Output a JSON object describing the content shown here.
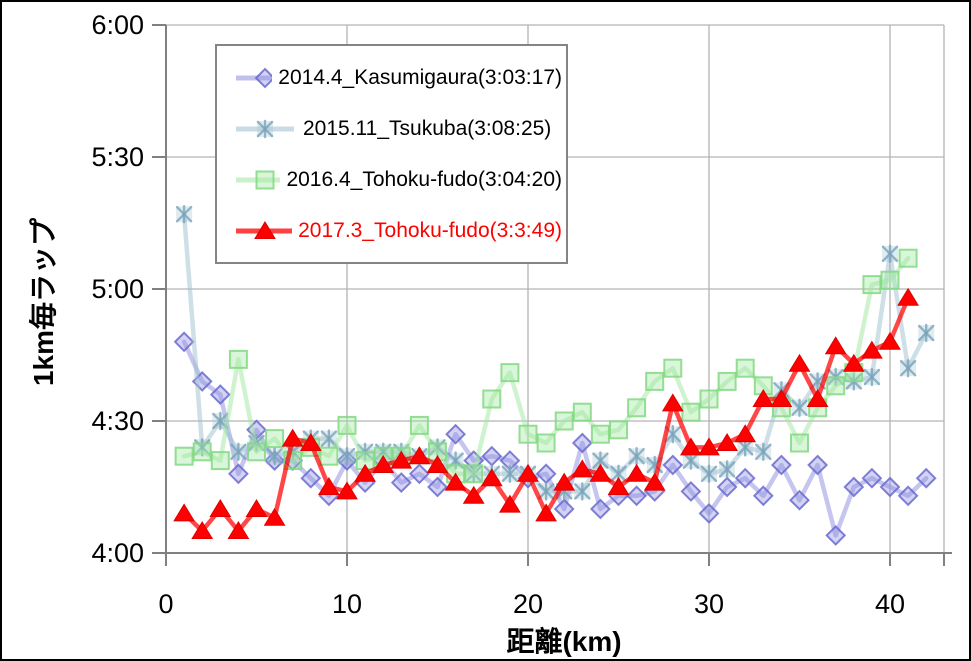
{
  "figure": {
    "background": "#ffffff",
    "border_color": "#000000",
    "grid_color": "#b3b3b3",
    "axis_color": "#808080",
    "legend_border_color": "#848484"
  },
  "chart_data": {
    "type": "line",
    "title": "",
    "xlabel": "距離(km)",
    "ylabel": "1km毎ラップ",
    "x_ticks": [
      0,
      10,
      20,
      30,
      40
    ],
    "y_ticks": [
      "4:00",
      "4:30",
      "5:00",
      "5:30",
      "6:00"
    ],
    "ylim": [
      "4:00",
      "6:00"
    ],
    "xlim": [
      0,
      43
    ],
    "grid": true,
    "legend_position": "inset-top-left",
    "series": [
      {
        "name": "2014.4_Kasumigaura(3:03:17)",
        "marker": "diamond",
        "color": "#8c8ce0",
        "marker_stroke": "#6a6ad0",
        "label_color": "#000000",
        "x": [
          1,
          2,
          3,
          4,
          5,
          6,
          7,
          8,
          9,
          10,
          11,
          12,
          13,
          14,
          15,
          16,
          17,
          18,
          19,
          20,
          21,
          22,
          23,
          24,
          25,
          26,
          27,
          28,
          29,
          30,
          31,
          32,
          33,
          34,
          35,
          36,
          37,
          38,
          39,
          40,
          41,
          42
        ],
        "laps": [
          "4:48",
          "4:39",
          "4:36",
          "4:18",
          "4:28",
          "4:21",
          "4:21",
          "4:17",
          "4:13",
          "4:21",
          "4:16",
          "4:21",
          "4:16",
          "4:18",
          "4:15",
          "4:27",
          "4:21",
          "4:22",
          "4:21",
          "4:17",
          "4:18",
          "4:10",
          "4:25",
          "4:10",
          "4:13",
          "4:13",
          "4:14",
          "4:20",
          "4:14",
          "4:09",
          "4:15",
          "4:17",
          "4:13",
          "4:20",
          "4:12",
          "4:20",
          "4:04",
          "4:15",
          "4:17",
          "4:15",
          "4:13",
          "4:17"
        ]
      },
      {
        "name": "2015.11_Tsukuba(3:08:25)",
        "marker": "asterisk",
        "color": "#9dc0d2",
        "marker_stroke": "#7ba4ba",
        "label_color": "#000000",
        "x": [
          1,
          2,
          3,
          4,
          5,
          6,
          7,
          8,
          9,
          10,
          11,
          12,
          13,
          14,
          15,
          16,
          17,
          18,
          19,
          20,
          21,
          22,
          23,
          24,
          25,
          26,
          27,
          28,
          29,
          30,
          31,
          32,
          33,
          34,
          35,
          36,
          37,
          38,
          39,
          40,
          41,
          42
        ],
        "laps": [
          "5:17",
          "4:24",
          "4:30",
          "4:23",
          "4:25",
          "4:22",
          "4:23",
          "4:26",
          "4:26",
          "4:22",
          "4:23",
          "4:23",
          "4:23",
          "4:22",
          "4:24",
          "4:21",
          "4:18",
          "4:18",
          "4:18",
          "4:18",
          "4:14",
          "4:14",
          "4:14",
          "4:21",
          "4:18",
          "4:22",
          "4:20",
          "4:27",
          "4:21",
          "4:18",
          "4:19",
          "4:24",
          "4:23",
          "4:37",
          "4:33",
          "4:39",
          "4:40",
          "4:39",
          "4:40",
          "5:08",
          "4:42",
          "4:50"
        ]
      },
      {
        "name": "2016.4_Tohoku-fudo(3:04:20)",
        "marker": "square",
        "color": "#9fe89f",
        "marker_stroke": "#82d882",
        "label_color": "#000000",
        "x": [
          1,
          2,
          3,
          4,
          5,
          6,
          7,
          8,
          9,
          10,
          11,
          12,
          13,
          14,
          15,
          16,
          17,
          18,
          19,
          20,
          21,
          22,
          23,
          24,
          25,
          26,
          27,
          28,
          29,
          30,
          31,
          32,
          33,
          34,
          35,
          36,
          37,
          38,
          39,
          40,
          41
        ],
        "laps": [
          "4:22",
          "4:23",
          "4:21",
          "4:44",
          "4:23",
          "4:26",
          "4:21",
          "4:24",
          "4:22",
          "4:29",
          "4:21",
          "4:22",
          "4:22",
          "4:29",
          "4:23",
          "4:18",
          "4:18",
          "4:35",
          "4:41",
          "4:27",
          "4:25",
          "4:30",
          "4:32",
          "4:27",
          "4:28",
          "4:33",
          "4:39",
          "4:42",
          "4:32",
          "4:35",
          "4:39",
          "4:42",
          "4:38",
          "4:33",
          "4:25",
          "4:33",
          "4:38",
          "4:41",
          "5:01",
          "5:02",
          "5:07"
        ]
      },
      {
        "name": "2017.3_Tohoku-fudo(3:3:49)",
        "marker": "triangle",
        "color": "#ff0000",
        "marker_stroke": "#e00000",
        "label_color": "#ff0000",
        "x": [
          1,
          2,
          3,
          4,
          5,
          6,
          7,
          8,
          9,
          10,
          11,
          12,
          13,
          14,
          15,
          16,
          17,
          18,
          19,
          20,
          21,
          22,
          23,
          24,
          25,
          26,
          27,
          28,
          29,
          30,
          31,
          32,
          33,
          34,
          35,
          36,
          37,
          38,
          39,
          40,
          41
        ],
        "laps": [
          "4:09",
          "4:05",
          "4:10",
          "4:05",
          "4:10",
          "4:08",
          "4:26",
          "4:25",
          "4:15",
          "4:14",
          "4:18",
          "4:20",
          "4:21",
          "4:22",
          "4:20",
          "4:16",
          "4:13",
          "4:17",
          "4:11",
          "4:18",
          "4:09",
          "4:16",
          "4:19",
          "4:18",
          "4:15",
          "4:18",
          "4:16",
          "4:34",
          "4:24",
          "4:24",
          "4:25",
          "4:27",
          "4:35",
          "4:35",
          "4:43",
          "4:35",
          "4:47",
          "4:43",
          "4:46",
          "4:48",
          "4:58"
        ]
      }
    ]
  }
}
